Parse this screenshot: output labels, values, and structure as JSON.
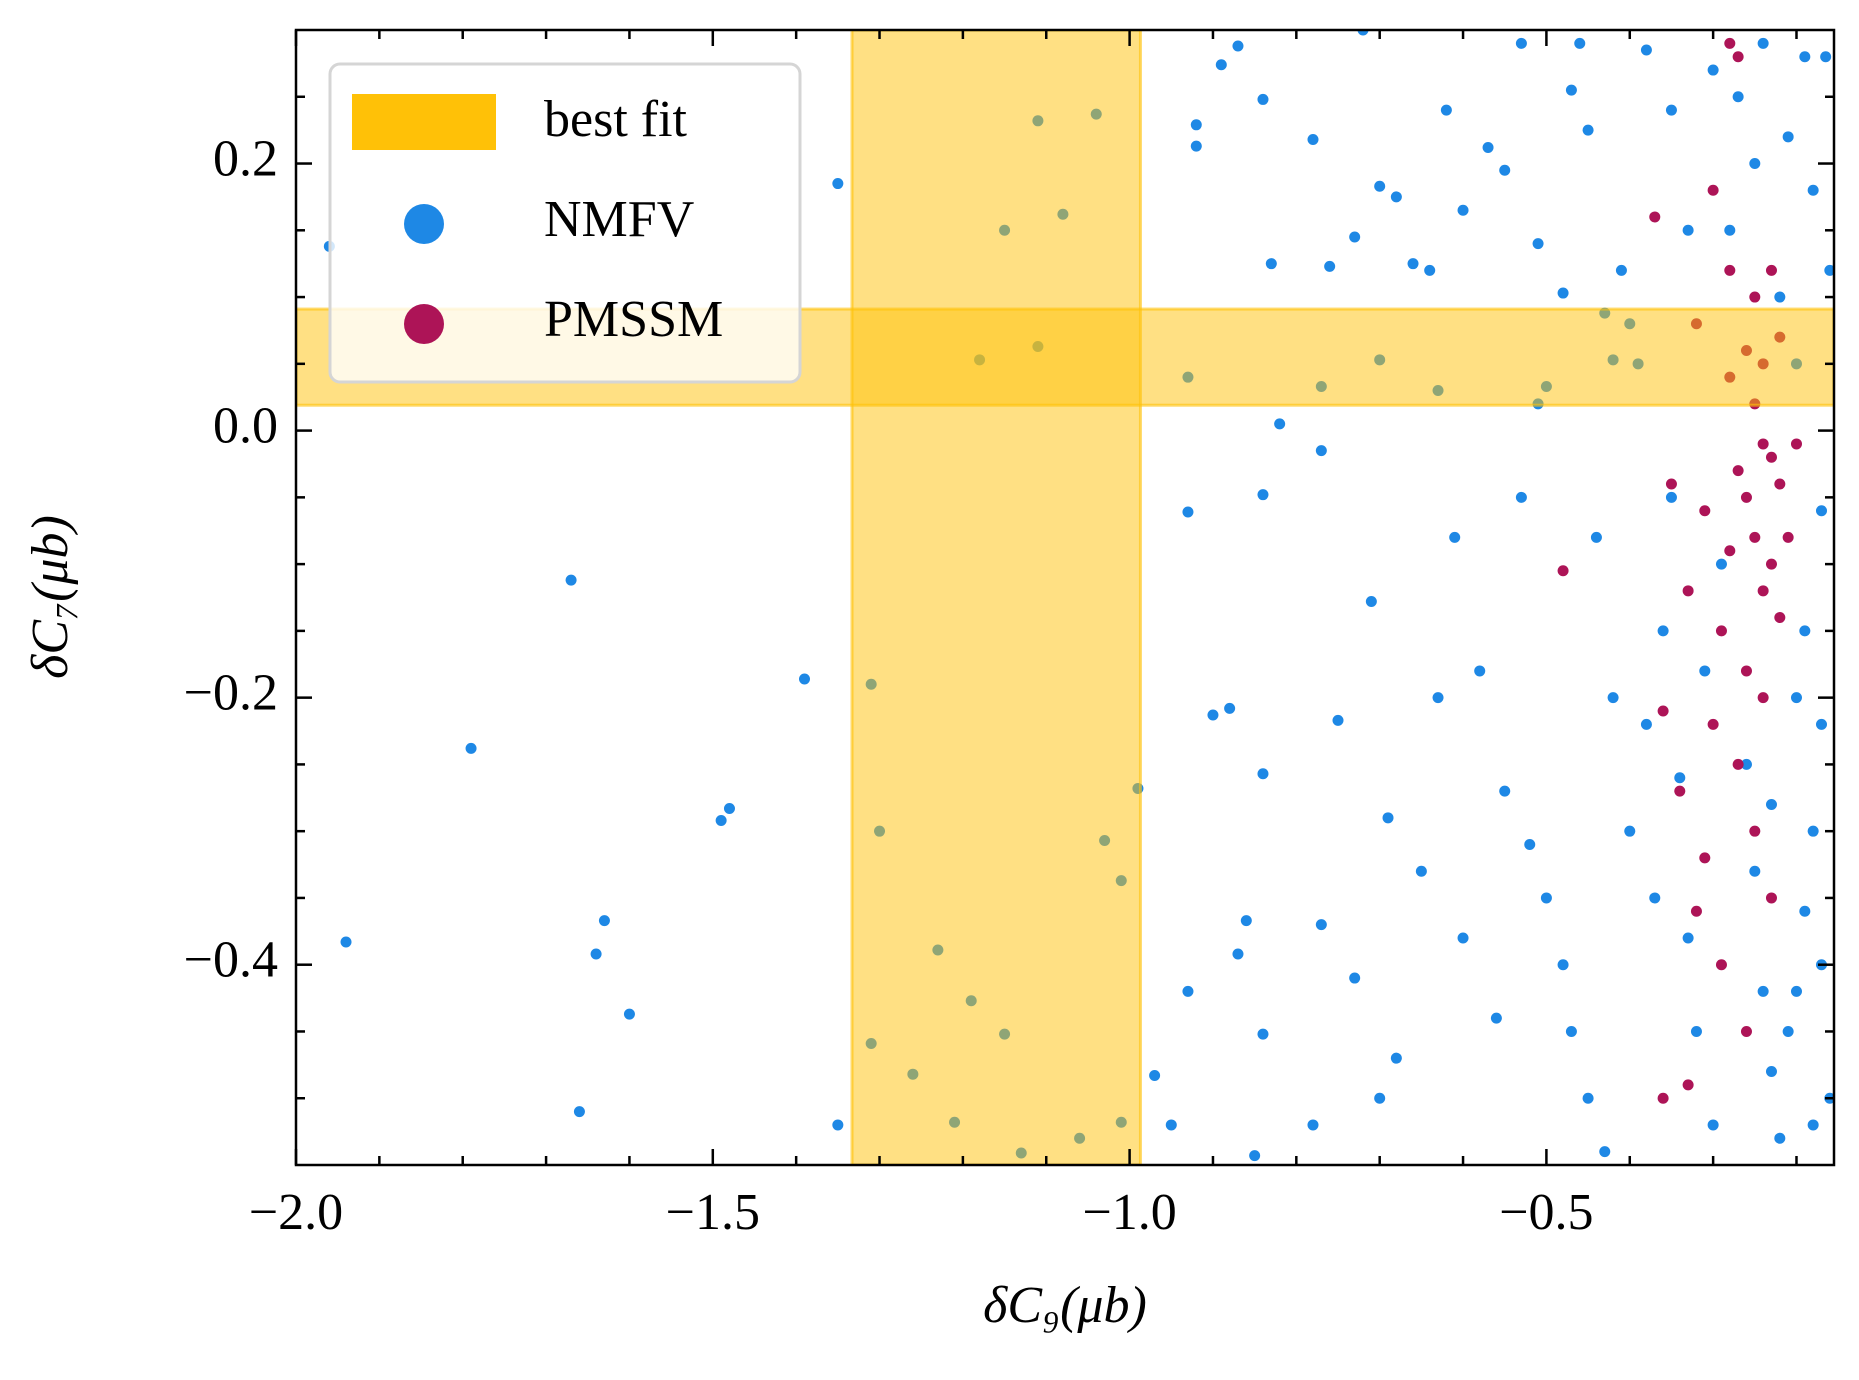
{
  "chart_data": {
    "type": "scatter",
    "xlabel": "δC₉(μb)",
    "ylabel": "δC₇(μb)",
    "xlim": [
      -2.0,
      -0.155
    ],
    "ylim": [
      -0.55,
      0.3
    ],
    "xticks": [
      {
        "value": -2.0,
        "label": "−2.0"
      },
      {
        "value": -1.5,
        "label": "−1.5"
      },
      {
        "value": -1.0,
        "label": "−1.0"
      },
      {
        "value": -0.5,
        "label": "−0.5"
      }
    ],
    "yticks": [
      {
        "value": -0.4,
        "label": "−0.4"
      },
      {
        "value": -0.2,
        "label": "−0.2"
      },
      {
        "value": 0.0,
        "label": "0.0"
      },
      0.2
    ],
    "xminorticks": [
      -1.9,
      -1.8,
      -1.7,
      -1.6,
      -1.4,
      -1.3,
      -1.2,
      -1.1,
      -0.9,
      -0.8,
      -0.7,
      -0.6,
      -0.4,
      -0.3,
      -0.2
    ],
    "yminorticks": [
      -0.5,
      -0.45,
      -0.35,
      -0.3,
      -0.25,
      -0.15,
      -0.1,
      -0.05,
      0.05,
      0.1,
      0.15,
      0.25
    ],
    "legend": "upper left",
    "band": {
      "name": "best fit",
      "color": "#ffc107",
      "x": [
        -1.333,
        -0.987
      ],
      "y": [
        0.019,
        0.091
      ]
    },
    "series": [
      {
        "name": "NMFV",
        "color": "#1e88e5",
        "x": [
          -1.96,
          -1.35,
          -1.67,
          -1.39,
          -1.79,
          -1.49,
          -1.48,
          -1.94,
          -1.63,
          -1.64,
          -1.6,
          -1.66,
          -1.35,
          -0.99,
          -0.93,
          -0.92,
          -0.92,
          -0.89,
          -0.87,
          -0.84,
          -0.83,
          -0.82,
          -0.84,
          -0.9,
          -0.88,
          -0.84,
          -0.86,
          -0.87,
          -0.93,
          -0.84,
          -0.97,
          -0.95,
          -0.85,
          -0.78,
          -0.76,
          -0.73,
          -0.77,
          -0.75,
          -0.71,
          -0.72,
          -0.7,
          -0.68,
          -0.62,
          -0.6,
          -0.57,
          -0.55,
          -0.51,
          -0.48,
          -0.47,
          -0.45,
          -0.43,
          -0.42,
          -0.41,
          -0.66,
          -0.64,
          -0.61,
          -0.63,
          -0.58,
          -0.55,
          -0.52,
          -0.5,
          -0.48,
          -0.47,
          -0.45,
          -0.43,
          -0.4,
          -0.38,
          -0.36,
          -0.35,
          -0.33,
          -0.32,
          -0.3,
          -0.29,
          -0.28,
          -0.27,
          -0.26,
          -0.25,
          -0.24,
          -0.23,
          -0.22,
          -0.21,
          -0.2,
          -0.19,
          -0.18,
          -0.17,
          -0.165,
          -0.16,
          -0.18,
          -0.2,
          -0.22,
          -0.21,
          -0.19,
          -0.17,
          -0.23,
          -0.25,
          -0.16,
          -0.18,
          -0.2,
          -0.17,
          -0.19,
          -0.24,
          -0.3,
          -0.56,
          -0.6,
          -0.65,
          -0.68,
          -0.7,
          -0.73,
          -0.77,
          -0.78,
          -0.69,
          -0.53,
          -0.51,
          -0.44,
          -0.39,
          -0.42,
          -0.37,
          -0.34,
          -0.31,
          -0.33,
          -0.35,
          -0.38,
          -0.53,
          -0.46,
          -1.11,
          -1.04,
          -1.08,
          -1.15,
          -1.18,
          -1.11,
          -1.31,
          -1.3,
          -1.31,
          -1.26,
          -1.21,
          -1.23,
          -1.19,
          -1.15,
          -1.13,
          -1.06,
          -1.03,
          -1.01,
          -1.01,
          -0.93,
          -0.77,
          -0.7,
          -0.63,
          -0.5,
          -0.4
        ],
        "values": [
          0.138,
          0.185,
          -0.112,
          -0.186,
          -0.238,
          -0.292,
          -0.283,
          -0.383,
          -0.367,
          -0.392,
          -0.437,
          -0.51,
          -0.52,
          -0.268,
          -0.061,
          0.229,
          0.213,
          0.274,
          0.288,
          0.248,
          0.125,
          0.005,
          -0.048,
          -0.213,
          -0.208,
          -0.257,
          -0.367,
          -0.392,
          -0.42,
          -0.452,
          -0.483,
          -0.52,
          -0.543,
          0.218,
          0.123,
          0.145,
          -0.015,
          -0.217,
          -0.128,
          0.3,
          0.183,
          0.175,
          0.24,
          0.165,
          0.212,
          0.195,
          0.14,
          0.103,
          0.255,
          0.225,
          0.088,
          0.053,
          0.12,
          0.125,
          0.12,
          -0.08,
          -0.2,
          -0.18,
          -0.27,
          -0.31,
          -0.35,
          -0.4,
          -0.45,
          -0.5,
          -0.54,
          -0.3,
          -0.22,
          -0.15,
          -0.05,
          -0.38,
          -0.45,
          -0.52,
          -0.1,
          0.15,
          0.25,
          -0.25,
          -0.33,
          -0.42,
          -0.48,
          -0.53,
          0.22,
          0.05,
          -0.15,
          -0.3,
          -0.4,
          0.28,
          -0.5,
          0.18,
          -0.2,
          0.1,
          -0.45,
          -0.36,
          -0.06,
          -0.28,
          0.2,
          0.12,
          -0.52,
          -0.42,
          -0.22,
          0.28,
          0.29,
          0.27,
          -0.44,
          -0.38,
          -0.33,
          -0.47,
          -0.5,
          -0.41,
          -0.37,
          -0.52,
          -0.29,
          -0.05,
          0.02,
          -0.08,
          0.05,
          -0.2,
          -0.35,
          -0.26,
          -0.18,
          0.15,
          0.24,
          0.285,
          0.29,
          0.29,
          0.232,
          0.237,
          0.162,
          0.15,
          0.053,
          0.063,
          -0.19,
          -0.3,
          -0.459,
          -0.482,
          -0.518,
          -0.389,
          -0.427,
          -0.452,
          -0.541,
          -0.53,
          -0.307,
          -0.337,
          -0.518,
          0.04,
          0.033,
          0.053,
          0.03,
          0.033,
          0.08
        ]
      },
      {
        "name": "PMSSM",
        "color": "#ad1457",
        "x": [
          -0.28,
          -0.27,
          -0.3,
          -0.25,
          -0.23,
          -0.26,
          -0.24,
          -0.22,
          -0.28,
          -0.25,
          -0.24,
          -0.23,
          -0.22,
          -0.26,
          -0.27,
          -0.25,
          -0.23,
          -0.24,
          -0.28,
          -0.31,
          -0.33,
          -0.29,
          -0.26,
          -0.24,
          -0.3,
          -0.34,
          -0.36,
          -0.48,
          -0.27,
          -0.25,
          -0.31,
          -0.29,
          -0.32,
          -0.26,
          -0.33,
          -0.36,
          -0.23,
          -0.28,
          -0.32,
          -0.35,
          -0.37,
          -0.21,
          -0.2,
          -0.22
        ],
        "values": [
          0.29,
          0.28,
          0.18,
          0.1,
          0.12,
          0.06,
          0.05,
          0.07,
          0.04,
          0.02,
          -0.01,
          -0.02,
          -0.04,
          -0.05,
          -0.03,
          -0.08,
          -0.1,
          -0.12,
          -0.09,
          -0.06,
          -0.12,
          -0.15,
          -0.18,
          -0.2,
          -0.22,
          -0.27,
          -0.21,
          -0.105,
          -0.25,
          -0.3,
          -0.32,
          -0.4,
          -0.36,
          -0.45,
          -0.49,
          -0.5,
          -0.35,
          0.12,
          0.08,
          -0.04,
          0.16,
          -0.08,
          -0.01,
          -0.14
        ]
      }
    ]
  }
}
